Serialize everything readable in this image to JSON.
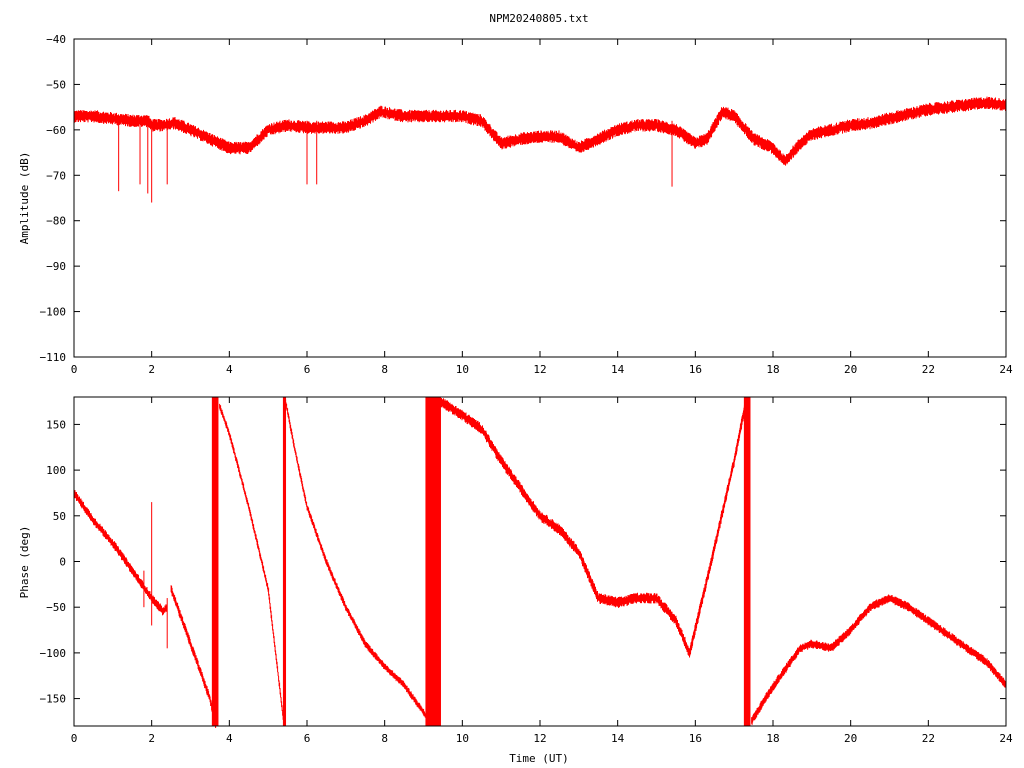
{
  "title": "NPM20240805.txt",
  "colors": {
    "trace": "#ff0000",
    "axis": "#000000",
    "background": "#ffffff"
  },
  "chart_data": [
    {
      "type": "line",
      "ylabel": "Amplitude (dB)",
      "xlabel": "",
      "xlim": [
        0,
        24
      ],
      "ylim": [
        -110,
        -40
      ],
      "xticks": [
        0,
        2,
        4,
        6,
        8,
        10,
        12,
        14,
        16,
        18,
        20,
        22,
        24
      ],
      "yticks": [
        -110,
        -100,
        -90,
        -80,
        -70,
        -60,
        -50,
        -40
      ],
      "grid": false,
      "series": [
        {
          "x": [
            0,
            0.5,
            1.0,
            1.5,
            1.9,
            2.0,
            2.3,
            2.6,
            3.0,
            3.5,
            4.0,
            4.5,
            5.0,
            5.5,
            6.0,
            6.5,
            7.0,
            7.5,
            7.9,
            8.5,
            9.0,
            9.5,
            10.0,
            10.5,
            11.0,
            11.5,
            12.0,
            12.5,
            13.0,
            13.5,
            14.0,
            14.5,
            15.0,
            15.5,
            16.0,
            16.3,
            16.7,
            17.0,
            17.5,
            18.0,
            18.3,
            18.7,
            19.0,
            19.5,
            20.0,
            20.5,
            21.0,
            21.5,
            22.0,
            22.5,
            23.0,
            23.5,
            24.0
          ],
          "y": [
            -57,
            -57,
            -57.5,
            -58,
            -58,
            -59,
            -59,
            -58.5,
            -60,
            -62,
            -64,
            -64,
            -60,
            -59,
            -59.5,
            -59.5,
            -59.5,
            -58,
            -56,
            -57,
            -57,
            -57,
            -57,
            -58,
            -63,
            -62,
            -61.5,
            -61.5,
            -64,
            -62,
            -60,
            -59,
            -59,
            -60,
            -63,
            -62,
            -56,
            -57,
            -62,
            -64,
            -67,
            -63,
            -61,
            -60,
            -59,
            -58.5,
            -57.5,
            -56.5,
            -55.5,
            -55,
            -54.5,
            -54,
            -54.5
          ],
          "noise": 1.4
        }
      ],
      "spikes": [
        {
          "x": 1.15,
          "y": -73.5
        },
        {
          "x": 1.7,
          "y": -72
        },
        {
          "x": 1.9,
          "y": -74
        },
        {
          "x": 2.0,
          "y": -76
        },
        {
          "x": 2.4,
          "y": -72
        },
        {
          "x": 6.0,
          "y": -72
        },
        {
          "x": 6.25,
          "y": -72
        },
        {
          "x": 15.4,
          "y": -72.5
        }
      ]
    },
    {
      "type": "line",
      "ylabel": "Phase (deg)",
      "xlabel": "Time (UT)",
      "xlim": [
        0,
        24
      ],
      "ylim": [
        -180,
        180
      ],
      "xticks": [
        0,
        2,
        4,
        6,
        8,
        10,
        12,
        14,
        16,
        18,
        20,
        22,
        24
      ],
      "yticks": [
        -150,
        -100,
        -50,
        0,
        50,
        100,
        150
      ],
      "grid": false,
      "series": [
        {
          "segments": [
            {
              "x": [
                0,
                0.5,
                1.0,
                1.5,
                2.0,
                2.3,
                2.4
              ],
              "y": [
                75,
                45,
                20,
                -10,
                -40,
                -55,
                -50
              ],
              "noise": 5
            },
            {
              "x": [
                2.5,
                3.0,
                3.5,
                3.65
              ],
              "y": [
                -30,
                -90,
                -150,
                -180
              ],
              "noise": 5
            },
            {
              "x": [
                3.75,
                4.0,
                4.5,
                5.0,
                5.4
              ],
              "y": [
                170,
                140,
                60,
                -30,
                -175
              ],
              "noise": 4
            },
            {
              "x": [
                5.45,
                5.7,
                6.0,
                6.5,
                7.0,
                7.5,
                8.0,
                8.5,
                9.0,
                9.2
              ],
              "y": [
                175,
                120,
                60,
                0,
                -50,
                -90,
                -115,
                -135,
                -165,
                -178
              ],
              "noise": 4
            },
            {
              "x": [
                9.45,
                10.0,
                10.5,
                11.0,
                11.5,
                12.0,
                12.5,
                13.0,
                13.5,
                14.0,
                14.5,
                15.0,
                15.5,
                15.85,
                16.3,
                17.0,
                17.3
              ],
              "y": [
                175,
                160,
                145,
                110,
                80,
                50,
                35,
                10,
                -40,
                -45,
                -40,
                -40,
                -65,
                -100,
                -20,
                110,
                175
              ],
              "noise": 6
            },
            {
              "x": [
                17.45,
                17.8,
                18.2,
                18.7,
                19.0,
                19.5,
                20.0,
                20.5,
                21.0,
                21.5,
                22.0,
                22.5,
                23.0,
                23.5,
                24.0
              ],
              "y": [
                -175,
                -150,
                -125,
                -95,
                -90,
                -95,
                -75,
                -50,
                -40,
                -50,
                -65,
                -80,
                -95,
                -110,
                -135
              ],
              "noise": 5
            }
          ]
        }
      ],
      "wrap_bands": [
        {
          "x1": 3.55,
          "x2": 3.72
        },
        {
          "x1": 5.38,
          "x2": 5.46
        },
        {
          "x1": 9.05,
          "x2": 9.45
        },
        {
          "x1": 17.25,
          "x2": 17.42
        }
      ],
      "spikes": [
        {
          "x": 2.0,
          "y1": -70,
          "y2": 65
        },
        {
          "x": 2.4,
          "y1": -95,
          "y2": -40
        },
        {
          "x": 1.8,
          "y1": -50,
          "y2": -10
        }
      ]
    }
  ]
}
